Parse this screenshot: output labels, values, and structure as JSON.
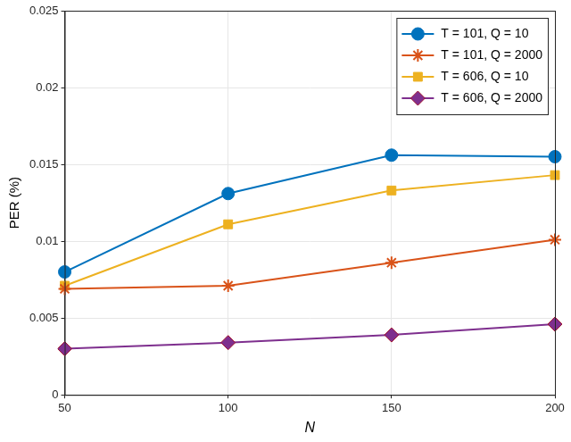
{
  "chart_data": {
    "type": "line",
    "x_label": "N",
    "y_label": "PER (%)",
    "x": [
      50,
      100,
      150,
      200
    ],
    "xlim": [
      50,
      200
    ],
    "xticks": [
      50,
      100,
      150,
      200
    ],
    "ylim": [
      0,
      0.025
    ],
    "yticks": [
      0,
      0.005,
      0.01,
      0.015,
      0.02,
      0.025
    ],
    "grid": true,
    "legend": "northeast",
    "series": [
      {
        "name": "T = 101, Q = 10",
        "color": "#0072bd",
        "marker": "circle",
        "line_style": "solid",
        "values": [
          0.008,
          0.0131,
          0.0156,
          0.0155
        ]
      },
      {
        "name": "T = 101, Q = 2000",
        "color": "#d95319",
        "marker": "star",
        "line_style": "solid",
        "values": [
          0.0069,
          0.0071,
          0.0086,
          0.0101
        ]
      },
      {
        "name": "T = 606, Q = 10",
        "color": "#edb120",
        "marker": "square",
        "line_style": "solid",
        "values": [
          0.0071,
          0.0111,
          0.0133,
          0.0143
        ]
      },
      {
        "name": "T = 606, Q = 2000",
        "color": "#7e2f8e",
        "marker": "diamond",
        "line_style": "solid",
        "values": [
          0.003,
          0.0034,
          0.0039,
          0.0046
        ]
      }
    ]
  }
}
